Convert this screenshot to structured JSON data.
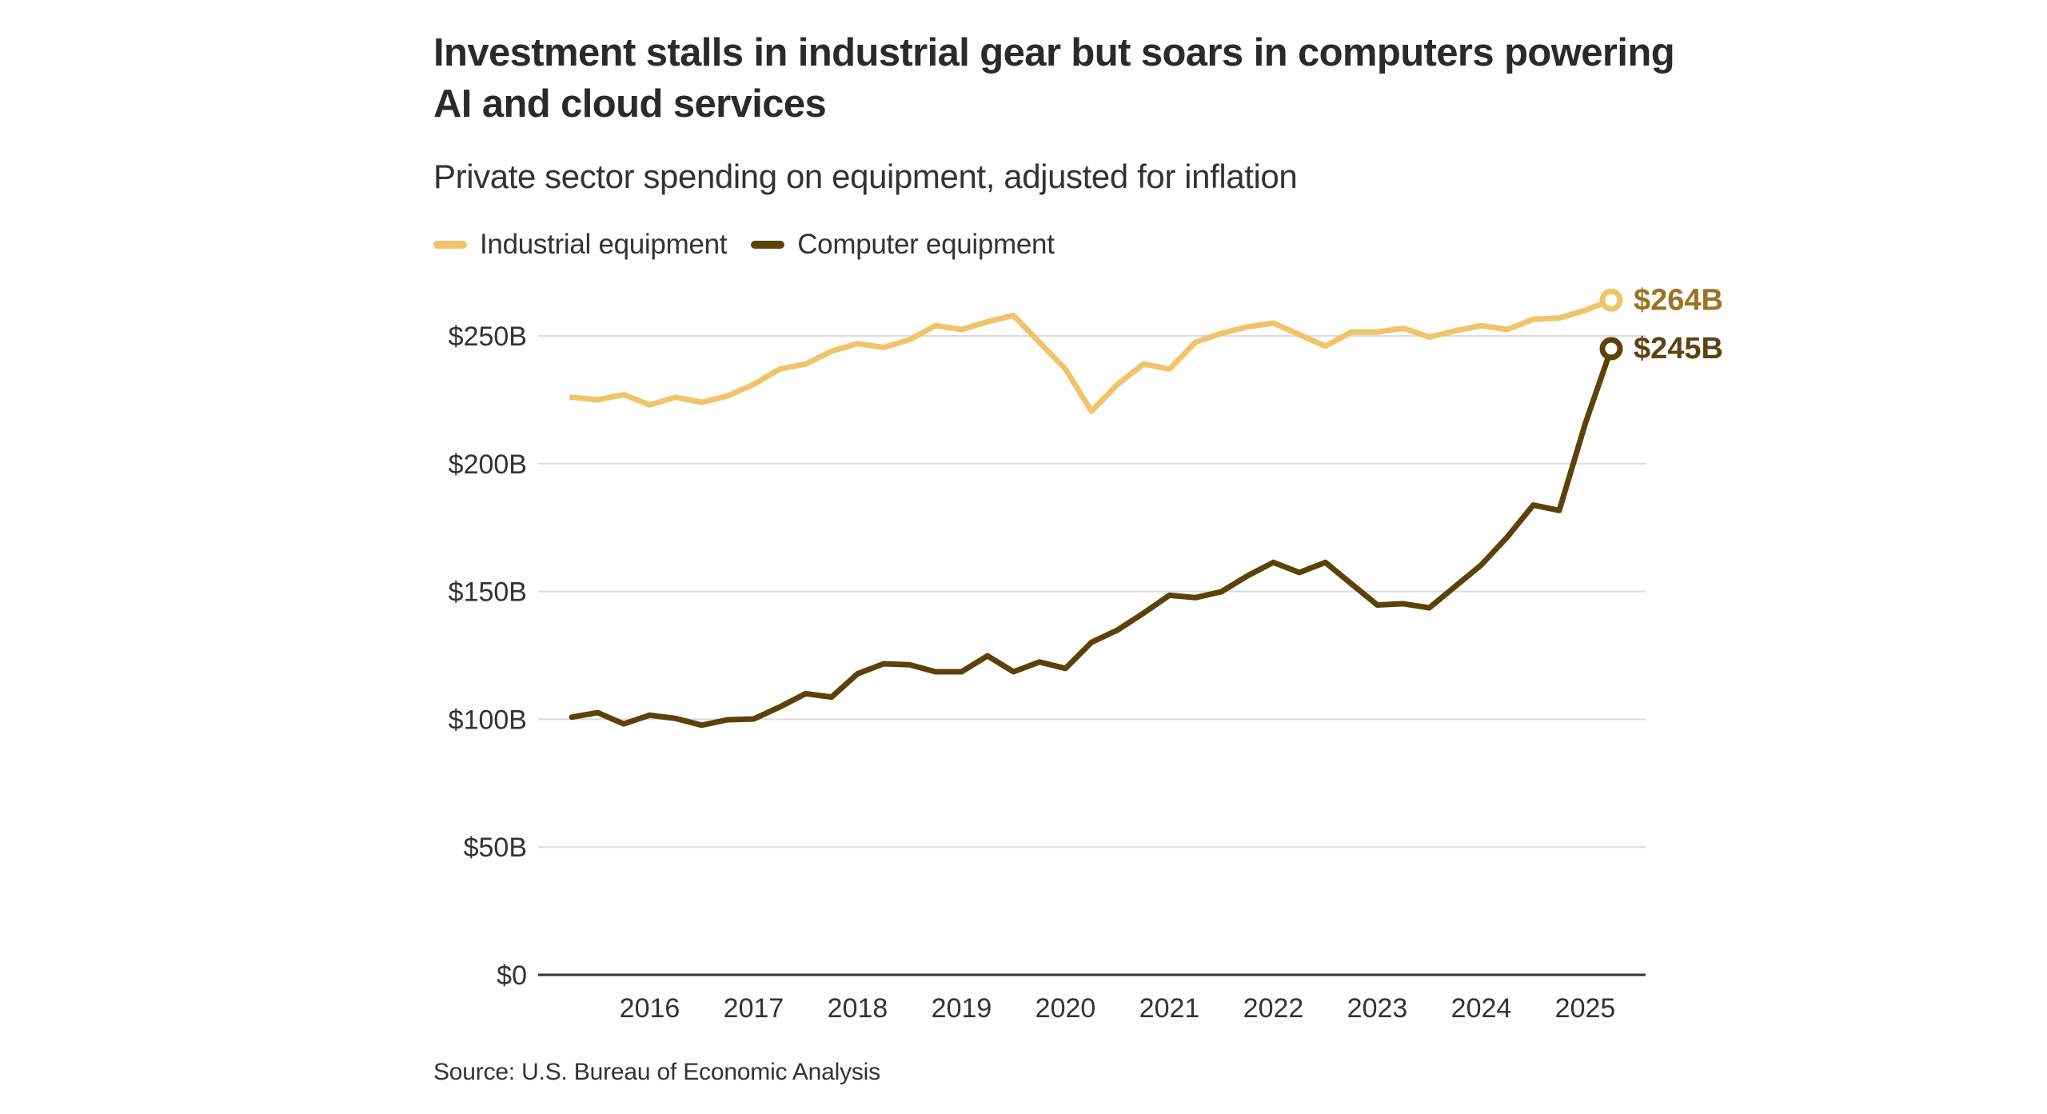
{
  "header": {
    "title": "Investment stalls in industrial gear but soars in computers powering AI and cloud services",
    "subtitle": "Private sector spending on equipment, adjusted for inflation"
  },
  "legend": [
    {
      "label": "Industrial equipment",
      "color": "#f0c46a"
    },
    {
      "label": "Computer equipment",
      "color": "#5c4208"
    }
  ],
  "source": "Source: U.S. Bureau of Economic Analysis",
  "chart_data": {
    "type": "line",
    "title": "Investment stalls in industrial gear but soars in computers powering AI and cloud services",
    "subtitle": "Private sector spending on equipment, adjusted for inflation",
    "xlabel": "",
    "ylabel": "",
    "x": [
      "2015Q2",
      "2015Q3",
      "2015Q4",
      "2016Q1",
      "2016Q2",
      "2016Q3",
      "2016Q4",
      "2017Q1",
      "2017Q2",
      "2017Q3",
      "2017Q4",
      "2018Q1",
      "2018Q2",
      "2018Q3",
      "2018Q4",
      "2019Q1",
      "2019Q2",
      "2019Q3",
      "2019Q4",
      "2020Q1",
      "2020Q2",
      "2020Q3",
      "2020Q4",
      "2021Q1",
      "2021Q2",
      "2021Q3",
      "2021Q4",
      "2022Q1",
      "2022Q2",
      "2022Q3",
      "2022Q4",
      "2023Q1",
      "2023Q2",
      "2023Q3",
      "2023Q4",
      "2024Q1",
      "2024Q2",
      "2024Q3",
      "2024Q4",
      "2025Q1",
      "2025Q2"
    ],
    "x_tick_labels": [
      "2016",
      "2017",
      "2018",
      "2019",
      "2020",
      "2021",
      "2022",
      "2023",
      "2024",
      "2025"
    ],
    "x_tick_positions": [
      "2016Q1",
      "2017Q1",
      "2018Q1",
      "2019Q1",
      "2020Q1",
      "2021Q1",
      "2022Q1",
      "2023Q1",
      "2024Q1",
      "2025Q1"
    ],
    "y_ticks": [
      0,
      50,
      100,
      150,
      200,
      250
    ],
    "y_tick_labels": [
      "$0",
      "$50B",
      "$100B",
      "$150B",
      "$200B",
      "$250B"
    ],
    "ylim": [
      0,
      250
    ],
    "grid": true,
    "legend_position": "top-left",
    "series": [
      {
        "name": "Industrial equipment",
        "color": "#f0c46a",
        "label_color": "#9a7424",
        "end_label": "$264B",
        "values": [
          226,
          225,
          227,
          223,
          226,
          224,
          226.5,
          231,
          237,
          239,
          244,
          247,
          245.5,
          248.5,
          254,
          252.5,
          255.5,
          258,
          247.5,
          237,
          220.5,
          231,
          239,
          237,
          247.5,
          251,
          253.5,
          255,
          250.5,
          246,
          251.5,
          251.5,
          253,
          249.5,
          252,
          254,
          252.5,
          256.5,
          257,
          260,
          264
        ]
      },
      {
        "name": "Computer equipment",
        "color": "#5c4208",
        "label_color": "#5e4310",
        "end_label": "$245B",
        "values": [
          100.8,
          102.6,
          98.2,
          101.6,
          100.3,
          97.7,
          99.8,
          100.1,
          104.8,
          110,
          108.7,
          117.8,
          121.7,
          121.3,
          118.6,
          118.6,
          124.8,
          118.6,
          122.4,
          119.9,
          130.1,
          134.9,
          141.5,
          148.5,
          147.6,
          149.9,
          156.1,
          161.4,
          157.4,
          161.4,
          153,
          144.7,
          145.2,
          143.6,
          152,
          160.4,
          171.3,
          183.8,
          181.7,
          215.6,
          245
        ]
      }
    ]
  }
}
